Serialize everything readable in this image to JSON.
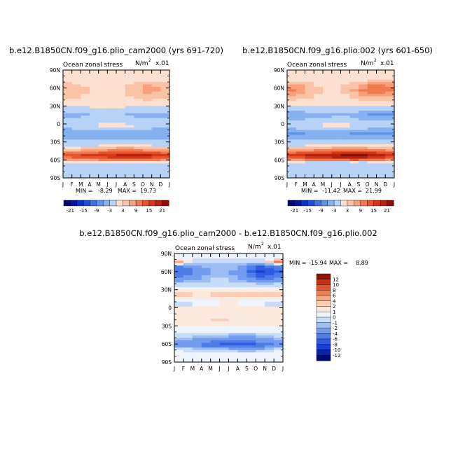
{
  "chart_data": [
    {
      "type": "heatmap",
      "title": "b.e12.B1850CN.f09_g16.plio_cam2000 (yrs 691-720)",
      "subtitle_left": "Ocean zonal stress",
      "units": "N/m",
      "units_exp": "2",
      "units_scale": "x.01",
      "x_tick_labels": [
        "J",
        "F",
        "M",
        "A",
        "M",
        "J",
        "J",
        "A",
        "S",
        "O",
        "N",
        "D",
        "J"
      ],
      "y_tick_labels": [
        "90N",
        "60N",
        "30N",
        "0",
        "30S",
        "60S",
        "90S"
      ],
      "stats": {
        "min_label": "MIN =",
        "min": "-8.29",
        "max_label": "MAX =",
        "max": "19.73"
      },
      "colorbar_labels": [
        "-21",
        "-15",
        "-9",
        "-3",
        "3",
        "9",
        "15",
        "21"
      ],
      "ylim": [
        -90,
        90
      ],
      "bands": [
        {
          "lat": 90,
          "v": [
            0,
            0,
            0,
            0,
            0,
            0,
            0,
            0,
            0,
            0,
            0,
            0,
            0
          ]
        },
        {
          "lat": 75,
          "v": [
            1,
            1,
            1,
            1,
            1,
            1,
            1,
            1,
            1,
            1,
            1,
            1,
            1
          ]
        },
        {
          "lat": 65,
          "v": [
            4,
            4,
            3,
            2,
            1,
            1,
            1,
            2,
            4,
            6,
            6,
            5,
            4
          ]
        },
        {
          "lat": 55,
          "v": [
            6,
            5,
            4,
            3,
            2,
            2,
            2,
            3,
            5,
            7,
            7,
            6,
            6
          ]
        },
        {
          "lat": 45,
          "v": [
            4,
            4,
            3,
            2,
            2,
            2,
            2,
            2,
            4,
            5,
            5,
            4,
            4
          ]
        },
        {
          "lat": 35,
          "v": [
            1,
            1,
            1,
            1,
            1,
            1,
            1,
            1,
            1,
            1,
            1,
            1,
            1
          ]
        },
        {
          "lat": 25,
          "v": [
            -1,
            -1,
            -1,
            0,
            0,
            0,
            0,
            0,
            -1,
            -1,
            -1,
            -1,
            -1
          ]
        },
        {
          "lat": 15,
          "v": [
            -4,
            -4,
            -4,
            -3,
            -3,
            -3,
            -2,
            -3,
            -4,
            -4,
            -5,
            -5,
            -4
          ]
        },
        {
          "lat": 5,
          "v": [
            -2,
            -2,
            -2,
            -1,
            -1,
            -1,
            -1,
            -1,
            -2,
            -2,
            -2,
            -2,
            -2
          ]
        },
        {
          "lat": -5,
          "v": [
            -2,
            -2,
            -1,
            -1,
            1,
            1,
            1,
            1,
            1,
            -1,
            -2,
            -2,
            -2
          ]
        },
        {
          "lat": -15,
          "v": [
            -6,
            -6,
            -5,
            -5,
            -5,
            -5,
            -5,
            -5,
            -6,
            -6,
            -6,
            -6,
            -6
          ]
        },
        {
          "lat": -25,
          "v": [
            -3,
            -3,
            -3,
            -3,
            -3,
            -3,
            -3,
            -3,
            -3,
            -3,
            -3,
            -3,
            -3
          ]
        },
        {
          "lat": -35,
          "v": [
            -1,
            -1,
            -1,
            -1,
            -1,
            1,
            1,
            1,
            1,
            -1,
            -1,
            -1,
            -1
          ]
        },
        {
          "lat": -45,
          "v": [
            6,
            6,
            7,
            8,
            9,
            10,
            11,
            11,
            11,
            10,
            9,
            8,
            6
          ]
        },
        {
          "lat": -52,
          "v": [
            14,
            14,
            15,
            16,
            17,
            17,
            18,
            19,
            19,
            19,
            18,
            16,
            14
          ]
        },
        {
          "lat": -58,
          "v": [
            10,
            10,
            12,
            12,
            13,
            14,
            15,
            15,
            16,
            15,
            14,
            12,
            10
          ]
        },
        {
          "lat": -65,
          "v": [
            -1,
            -1,
            -1,
            -2,
            -2,
            -2,
            -2,
            -2,
            -2,
            -2,
            -1,
            -1,
            -1
          ]
        },
        {
          "lat": -75,
          "v": [
            -2,
            -2,
            -2,
            -2,
            -2,
            -2,
            -2,
            -2,
            -2,
            -2,
            -2,
            -2,
            -2
          ]
        },
        {
          "lat": -90,
          "v": [
            -1,
            -1,
            -1,
            -1,
            -1,
            -1,
            -1,
            -1,
            -1,
            -1,
            -1,
            -1,
            -1
          ]
        }
      ]
    },
    {
      "type": "heatmap",
      "title": "b.e12.B1850CN.f09_g16.plio.002 (yrs 601-650)",
      "subtitle_left": "Ocean zonal stress",
      "units": "N/m",
      "units_exp": "2",
      "units_scale": "x.01",
      "x_tick_labels": [
        "J",
        "F",
        "M",
        "A",
        "M",
        "J",
        "J",
        "A",
        "S",
        "O",
        "N",
        "D",
        "J"
      ],
      "y_tick_labels": [
        "90N",
        "60N",
        "30N",
        "0",
        "30S",
        "60S",
        "90S"
      ],
      "stats": {
        "min_label": "MIN =",
        "min": "-11.42",
        "max_label": "MAX =",
        "max": "21.99"
      },
      "colorbar_labels": [
        "-21",
        "-15",
        "-9",
        "-3",
        "3",
        "9",
        "15",
        "21"
      ],
      "ylim": [
        -90,
        90
      ],
      "bands": [
        {
          "lat": 90,
          "v": [
            0,
            0,
            0,
            0,
            0,
            0,
            0,
            0,
            0,
            0,
            0,
            0,
            0
          ]
        },
        {
          "lat": 75,
          "v": [
            1,
            1,
            1,
            1,
            1,
            1,
            1,
            1,
            1,
            1,
            1,
            1,
            1
          ]
        },
        {
          "lat": 65,
          "v": [
            8,
            7,
            5,
            3,
            2,
            2,
            2,
            4,
            6,
            9,
            10,
            9,
            8
          ]
        },
        {
          "lat": 55,
          "v": [
            10,
            9,
            6,
            4,
            3,
            3,
            3,
            5,
            8,
            11,
            11,
            10,
            10
          ]
        },
        {
          "lat": 45,
          "v": [
            5,
            5,
            4,
            3,
            2,
            2,
            2,
            3,
            5,
            6,
            6,
            5,
            5
          ]
        },
        {
          "lat": 35,
          "v": [
            1,
            1,
            1,
            1,
            1,
            1,
            1,
            1,
            1,
            1,
            1,
            1,
            1
          ]
        },
        {
          "lat": 25,
          "v": [
            -2,
            -2,
            -1,
            -1,
            -1,
            -1,
            -1,
            -1,
            -2,
            -2,
            -2,
            -2,
            -2
          ]
        },
        {
          "lat": 15,
          "v": [
            -6,
            -6,
            -5,
            -4,
            -4,
            -4,
            -3,
            -4,
            -5,
            -6,
            -7,
            -7,
            -6
          ]
        },
        {
          "lat": 5,
          "v": [
            -2,
            -2,
            -2,
            -1,
            -1,
            -1,
            -1,
            -1,
            -2,
            -2,
            -2,
            -2,
            -2
          ]
        },
        {
          "lat": -5,
          "v": [
            -2,
            -2,
            -1,
            -1,
            1,
            1,
            1,
            1,
            -1,
            -1,
            -2,
            -2,
            -2
          ]
        },
        {
          "lat": -15,
          "v": [
            -7,
            -7,
            -6,
            -6,
            -6,
            -6,
            -6,
            -6,
            -7,
            -7,
            -7,
            -7,
            -7
          ]
        },
        {
          "lat": -25,
          "v": [
            -3,
            -3,
            -3,
            -3,
            -3,
            -3,
            -3,
            -3,
            -3,
            -3,
            -3,
            -3,
            -3
          ]
        },
        {
          "lat": -35,
          "v": [
            -1,
            -1,
            -1,
            -1,
            -1,
            1,
            1,
            1,
            1,
            -1,
            -1,
            -1,
            -1
          ]
        },
        {
          "lat": -45,
          "v": [
            8,
            8,
            9,
            10,
            11,
            12,
            13,
            13,
            13,
            12,
            11,
            10,
            8
          ]
        },
        {
          "lat": -52,
          "v": [
            16,
            16,
            18,
            19,
            19,
            20,
            21,
            21,
            21,
            21,
            20,
            18,
            16
          ]
        },
        {
          "lat": -58,
          "v": [
            12,
            12,
            14,
            15,
            16,
            17,
            17,
            18,
            18,
            17,
            16,
            14,
            12
          ]
        },
        {
          "lat": -65,
          "v": [
            -2,
            -2,
            -2,
            -3,
            -3,
            -3,
            -3,
            -3,
            -3,
            -3,
            -2,
            -2,
            -2
          ]
        },
        {
          "lat": -75,
          "v": [
            -2,
            -2,
            -2,
            -2,
            -2,
            -2,
            -2,
            -2,
            -2,
            -2,
            -2,
            -2,
            -2
          ]
        },
        {
          "lat": -90,
          "v": [
            -1,
            -1,
            -1,
            -1,
            -1,
            -1,
            -1,
            -1,
            -1,
            -1,
            -1,
            -1,
            -1
          ]
        }
      ]
    },
    {
      "type": "heatmap",
      "title": "b.e12.B1850CN.f09_g16.plio_cam2000 - b.e12.B1850CN.f09_g16.plio.002",
      "subtitle_left": "Ocean zonal stress",
      "units": "N/m",
      "units_exp": "2",
      "units_scale": "x.01",
      "x_tick_labels": [
        "J",
        "F",
        "M",
        "A",
        "M",
        "J",
        "J",
        "A",
        "S",
        "O",
        "N",
        "D",
        "J"
      ],
      "y_tick_labels": [
        "90N",
        "60N",
        "30N",
        "0",
        "30S",
        "60S",
        "90S"
      ],
      "stats": {
        "min_label": "MIN =",
        "min": "-15.94",
        "max_label": "MAX =",
        "max": "8.89"
      },
      "colorbar_labels": [
        "12",
        "10",
        "8",
        "6",
        "4",
        "2",
        "1",
        "0",
        "-1",
        "-2",
        "-4",
        "-6",
        "-8",
        "-10",
        "-12"
      ],
      "ylim": [
        -90,
        90
      ],
      "bands": [
        {
          "lat": 90,
          "v": [
            0,
            0,
            0,
            0,
            0,
            0,
            0,
            0,
            0,
            0,
            0,
            0,
            0
          ]
        },
        {
          "lat": 82,
          "v": [
            0,
            0,
            0,
            0,
            0,
            0,
            0,
            0,
            0,
            0,
            0,
            0,
            0
          ]
        },
        {
          "lat": 76,
          "v": [
            8,
            3,
            -1,
            -1,
            -1,
            -1,
            -1,
            -1,
            -1,
            -1,
            -1,
            5,
            8
          ]
        },
        {
          "lat": 68,
          "v": [
            -5,
            -5,
            -3,
            -2,
            -2,
            -2,
            -1,
            -2,
            -3,
            -6,
            -7,
            -5,
            -5
          ]
        },
        {
          "lat": 60,
          "v": [
            -6,
            -6,
            -4,
            -3,
            -2,
            -2,
            -2,
            -3,
            -5,
            -8,
            -9,
            -7,
            -6
          ]
        },
        {
          "lat": 50,
          "v": [
            -4,
            -4,
            -3,
            -2,
            -1,
            -1,
            -1,
            -2,
            -4,
            -5,
            -6,
            -5,
            -4
          ]
        },
        {
          "lat": 40,
          "v": [
            -1,
            -1,
            -1,
            -1,
            -1,
            -1,
            -1,
            -1,
            -1,
            -1,
            -2,
            -1,
            -1
          ]
        },
        {
          "lat": 30,
          "v": [
            1,
            1,
            1,
            1,
            1,
            1,
            1,
            1,
            1,
            1,
            1,
            1,
            1
          ]
        },
        {
          "lat": 22,
          "v": [
            3,
            3,
            2,
            2,
            2,
            3,
            3,
            3,
            3,
            3,
            3,
            3,
            3
          ]
        },
        {
          "lat": 14,
          "v": [
            1,
            1,
            1,
            1,
            1,
            1,
            1,
            1,
            1,
            1,
            1,
            1,
            1
          ]
        },
        {
          "lat": 6,
          "v": [
            -1,
            -1,
            0,
            0,
            0,
            1,
            1,
            1,
            0,
            0,
            0,
            -1,
            -1
          ]
        },
        {
          "lat": 0,
          "v": [
            1,
            1,
            1,
            1,
            1,
            1,
            1,
            1,
            1,
            1,
            1,
            1,
            1
          ]
        },
        {
          "lat": -10,
          "v": [
            1,
            1,
            1,
            1,
            1,
            1,
            2,
            2,
            1,
            1,
            1,
            1,
            1
          ]
        },
        {
          "lat": -20,
          "v": [
            1,
            1,
            1,
            1,
            2,
            2,
            2,
            1,
            1,
            1,
            1,
            1,
            1
          ]
        },
        {
          "lat": -30,
          "v": [
            1,
            1,
            1,
            1,
            1,
            1,
            1,
            1,
            1,
            1,
            1,
            1,
            1
          ]
        },
        {
          "lat": -40,
          "v": [
            0,
            0,
            0,
            0,
            0,
            0,
            0,
            0,
            0,
            0,
            0,
            0,
            0
          ]
        },
        {
          "lat": -48,
          "v": [
            -1,
            -1,
            -1,
            -2,
            -2,
            -2,
            -2,
            -3,
            -3,
            -2,
            -2,
            -1,
            -1
          ]
        },
        {
          "lat": -55,
          "v": [
            -2,
            -2,
            -2,
            -3,
            -4,
            -4,
            -4,
            -4,
            -4,
            -4,
            -3,
            -2,
            -2
          ]
        },
        {
          "lat": -62,
          "v": [
            -3,
            -3,
            -4,
            -5,
            -6,
            -7,
            -7,
            -7,
            -8,
            -8,
            -6,
            -5,
            -3
          ]
        },
        {
          "lat": -67,
          "v": [
            -1,
            -1,
            -1,
            -2,
            -2,
            -2,
            -2,
            -3,
            -3,
            -3,
            -2,
            -1,
            -1
          ]
        },
        {
          "lat": -75,
          "v": [
            1,
            1,
            0,
            0,
            0,
            0,
            0,
            0,
            0,
            0,
            0,
            1,
            1
          ]
        },
        {
          "lat": -90,
          "v": [
            0,
            0,
            0,
            0,
            0,
            0,
            0,
            0,
            0,
            0,
            0,
            0,
            0
          ]
        }
      ]
    }
  ]
}
